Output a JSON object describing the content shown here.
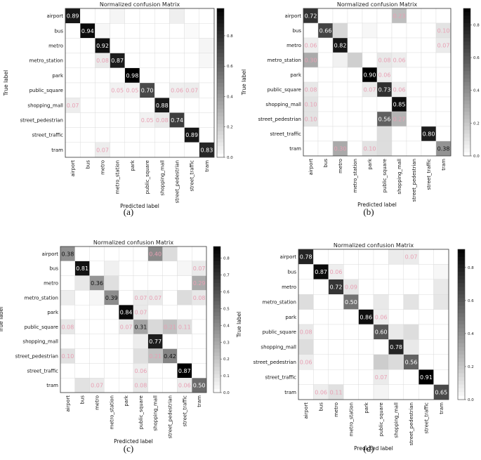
{
  "figure": {
    "subplot_labels": [
      "(a)",
      "(b)",
      "(c)",
      "(d)"
    ]
  },
  "chart_data": [
    {
      "type": "heatmap",
      "title": "Normalized confusion Matrix",
      "xlabel": "Predicted label",
      "ylabel": "True label",
      "categories": [
        "airport",
        "bus",
        "metro",
        "metro_station",
        "park",
        "public_square",
        "shopping_mall",
        "street_pedestrian",
        "street_traffic",
        "tram"
      ],
      "colorbar_ticks": [
        0.0,
        0.2,
        0.4,
        0.6,
        0.8
      ],
      "vmax": 0.98,
      "matrix": [
        [
          0.89,
          0.0,
          0.0,
          0.04,
          0.0,
          0.0,
          0.0,
          0.06,
          0.0,
          0.0
        ],
        [
          0.0,
          0.94,
          0.03,
          0.0,
          0.0,
          0.0,
          0.0,
          0.0,
          0.02,
          0.0
        ],
        [
          0.0,
          0.0,
          0.92,
          0.0,
          0.0,
          0.0,
          0.0,
          0.0,
          0.0,
          0.04
        ],
        [
          0.0,
          0.0,
          0.08,
          0.87,
          0.0,
          0.0,
          0.0,
          0.0,
          0.0,
          0.03
        ],
        [
          0.0,
          0.0,
          0.0,
          0.0,
          0.98,
          0.0,
          0.0,
          0.0,
          0.0,
          0.0
        ],
        [
          0.0,
          0.0,
          0.0,
          0.05,
          0.05,
          0.7,
          0.0,
          0.06,
          0.07,
          0.0
        ],
        [
          0.07,
          0.0,
          0.0,
          0.0,
          0.0,
          0.0,
          0.88,
          0.0,
          0.0,
          0.0
        ],
        [
          0.0,
          0.0,
          0.0,
          0.0,
          0.0,
          0.05,
          0.08,
          0.74,
          0.0,
          0.0
        ],
        [
          0.0,
          0.0,
          0.0,
          0.0,
          0.0,
          0.0,
          0.0,
          0.0,
          0.89,
          0.0
        ],
        [
          0.0,
          0.0,
          0.07,
          0.0,
          0.0,
          0.0,
          0.0,
          0.0,
          0.0,
          0.83
        ]
      ],
      "labels": [
        [
          "0.89",
          "",
          "",
          "",
          "",
          "",
          "",
          "",
          "",
          ""
        ],
        [
          "",
          "0.94",
          "",
          "",
          "",
          "",
          "",
          "",
          "",
          ""
        ],
        [
          "",
          "",
          "0.92",
          "",
          "",
          "",
          "",
          "",
          "",
          ""
        ],
        [
          "",
          "",
          "0.08",
          "0.87",
          "",
          "",
          "",
          "",
          "",
          ""
        ],
        [
          "",
          "",
          "",
          "",
          "0.98",
          "",
          "",
          "",
          "",
          ""
        ],
        [
          "",
          "",
          "",
          "0.05",
          "0.05",
          "0.70",
          "",
          "0.06",
          "0.07",
          ""
        ],
        [
          "0.07",
          "",
          "",
          "",
          "",
          "",
          "0.88",
          "",
          "",
          ""
        ],
        [
          "",
          "",
          "",
          "",
          "",
          "0.05",
          "0.08",
          "0.74",
          "",
          ""
        ],
        [
          "",
          "",
          "",
          "",
          "",
          "",
          "",
          "",
          "0.89",
          ""
        ],
        [
          "",
          "",
          "0.07",
          "",
          "",
          "",
          "",
          "",
          "",
          "0.83"
        ]
      ]
    },
    {
      "type": "heatmap",
      "title": "Normalized confusion Matrix",
      "xlabel": "Predicted label",
      "ylabel": "True label",
      "categories": [
        "airport",
        "bus",
        "metro",
        "metro_station",
        "park",
        "public_square",
        "shopping_mall",
        "street_pedestrian",
        "street_traffic",
        "tram"
      ],
      "colorbar_ticks": [
        0.0,
        0.2,
        0.4,
        0.6,
        0.8
      ],
      "vmax": 0.9,
      "matrix": [
        [
          0.72,
          0.0,
          0.0,
          0.0,
          0.0,
          0.0,
          0.23,
          0.0,
          0.0,
          0.0
        ],
        [
          0.0,
          0.66,
          0.14,
          0.0,
          0.03,
          0.0,
          0.0,
          0.0,
          0.0,
          0.1
        ],
        [
          0.06,
          0.0,
          0.82,
          0.0,
          0.0,
          0.0,
          0.0,
          0.0,
          0.0,
          0.07
        ],
        [
          0.3,
          0.0,
          0.05,
          0.17,
          0.0,
          0.08,
          0.06,
          0.0,
          0.0,
          0.0
        ],
        [
          0.0,
          0.0,
          0.0,
          0.0,
          0.9,
          0.06,
          0.0,
          0.0,
          0.0,
          0.0
        ],
        [
          0.08,
          0.0,
          0.0,
          0.0,
          0.07,
          0.73,
          0.06,
          0.0,
          0.0,
          0.0
        ],
        [
          0.1,
          0.0,
          0.0,
          0.0,
          0.0,
          0.0,
          0.85,
          0.0,
          0.0,
          0.0
        ],
        [
          0.1,
          0.0,
          0.0,
          0.0,
          0.0,
          0.56,
          0.27,
          0.0,
          0.0,
          0.0
        ],
        [
          0.0,
          0.0,
          0.0,
          0.0,
          0.0,
          0.12,
          0.0,
          0.0,
          0.8,
          0.0
        ],
        [
          0.0,
          0.0,
          0.3,
          0.0,
          0.1,
          0.12,
          0.0,
          0.0,
          0.0,
          0.38
        ]
      ],
      "labels": [
        [
          "0.72",
          "",
          "",
          "",
          "",
          "",
          "0.23",
          "",
          "",
          ""
        ],
        [
          "",
          "0.66",
          "",
          "",
          "",
          "",
          "",
          "",
          "",
          "0.10"
        ],
        [
          "0.06",
          "",
          "0.82",
          "",
          "",
          "",
          "",
          "",
          "",
          "0.07"
        ],
        [
          "0.30",
          "",
          "",
          "",
          "",
          "0.08",
          "0.06",
          "",
          "",
          ""
        ],
        [
          "",
          "",
          "",
          "",
          "0.90",
          "0.06",
          "",
          "",
          "",
          ""
        ],
        [
          "0.08",
          "",
          "",
          "",
          "0.07",
          "0.73",
          "0.06",
          "",
          "",
          ""
        ],
        [
          "0.10",
          "",
          "",
          "",
          "",
          "",
          "0.85",
          "",
          "",
          ""
        ],
        [
          "0.10",
          "",
          "",
          "",
          "",
          "0.56",
          "0.27",
          "",
          "",
          ""
        ],
        [
          "",
          "",
          "",
          "",
          "",
          "",
          "",
          "",
          "0.80",
          ""
        ],
        [
          "",
          "",
          "0.30",
          "",
          "0.10",
          "",
          "",
          "",
          "",
          "0.38"
        ]
      ]
    },
    {
      "type": "heatmap",
      "title": "Normalized confusion Matrix",
      "xlabel": "Predicted label",
      "ylabel": "True label",
      "categories": [
        "airport",
        "bus",
        "metro",
        "metro_station",
        "park",
        "public_square",
        "shopping_mall",
        "street_pedestrian",
        "street_traffic",
        "tram"
      ],
      "colorbar_ticks": [
        0.0,
        0.1,
        0.2,
        0.3,
        0.4,
        0.5,
        0.6,
        0.7,
        0.8
      ],
      "vmax": 0.87,
      "matrix": [
        [
          0.38,
          0.0,
          0.0,
          0.0,
          0.0,
          0.0,
          0.4,
          0.12,
          0.0,
          0.0
        ],
        [
          0.0,
          0.81,
          0.0,
          0.05,
          0.0,
          0.0,
          0.0,
          0.0,
          0.03,
          0.07
        ],
        [
          0.0,
          0.08,
          0.36,
          0.11,
          0.0,
          0.0,
          0.0,
          0.0,
          0.0,
          0.29
        ],
        [
          0.06,
          0.0,
          0.03,
          0.39,
          0.0,
          0.07,
          0.07,
          0.0,
          0.12,
          0.08
        ],
        [
          0.0,
          0.0,
          0.0,
          0.0,
          0.84,
          0.07,
          0.0,
          0.0,
          0.0,
          0.0
        ],
        [
          0.08,
          0.0,
          0.0,
          0.0,
          0.07,
          0.31,
          0.13,
          0.21,
          0.11,
          0.0
        ],
        [
          0.0,
          0.0,
          0.0,
          0.0,
          0.0,
          0.06,
          0.77,
          0.0,
          0.0,
          0.0
        ],
        [
          0.1,
          0.0,
          0.0,
          0.0,
          0.0,
          0.11,
          0.21,
          0.42,
          0.0,
          0.0
        ],
        [
          0.0,
          0.0,
          0.0,
          0.0,
          0.0,
          0.06,
          0.0,
          0.0,
          0.87,
          0.0
        ],
        [
          0.0,
          0.1,
          0.07,
          0.0,
          0.0,
          0.08,
          0.0,
          0.0,
          0.06,
          0.5
        ]
      ],
      "labels": [
        [
          "0.38",
          "",
          "",
          "",
          "",
          "",
          "0.40",
          "",
          "",
          ""
        ],
        [
          "",
          "0.81",
          "",
          "",
          "",
          "",
          "",
          "",
          "",
          "0.07"
        ],
        [
          "",
          "",
          "0.36",
          "",
          "",
          "",
          "",
          "",
          "",
          "0.29"
        ],
        [
          "",
          "",
          "",
          "0.39",
          "",
          "0.07",
          "0.07",
          "",
          "",
          "0.08"
        ],
        [
          "",
          "",
          "",
          "",
          "0.84",
          "0.07",
          "",
          "",
          "",
          ""
        ],
        [
          "0.08",
          "",
          "",
          "",
          "0.07",
          "0.31",
          "",
          "0.21",
          "0.11",
          ""
        ],
        [
          "",
          "",
          "",
          "",
          "",
          "",
          "0.77",
          "",
          "",
          ""
        ],
        [
          "0.10",
          "",
          "",
          "",
          "",
          "",
          "0.21",
          "0.42",
          "",
          ""
        ],
        [
          "",
          "",
          "",
          "",
          "",
          "0.06",
          "",
          "",
          "0.87",
          ""
        ],
        [
          "",
          "",
          "0.07",
          "",
          "",
          "0.08",
          "",
          "",
          "0.06",
          "0.50"
        ]
      ]
    },
    {
      "type": "heatmap",
      "title": "Normalized confusion Matrix",
      "xlabel": "Predicted label",
      "ylabel": "True label",
      "categories": [
        "airport",
        "bus",
        "metro",
        "metro_station",
        "park",
        "public_square",
        "shopping_mall",
        "street_pedestrian",
        "street_traffic",
        "tram"
      ],
      "colorbar_ticks": [
        0.0,
        0.2,
        0.4,
        0.6,
        0.8
      ],
      "vmax": 0.91,
      "matrix": [
        [
          0.78,
          0.0,
          0.0,
          0.0,
          0.0,
          0.0,
          0.07,
          0.07,
          0.0,
          0.0
        ],
        [
          0.0,
          0.87,
          0.06,
          0.0,
          0.0,
          0.0,
          0.0,
          0.0,
          0.0,
          0.03
        ],
        [
          0.0,
          0.0,
          0.72,
          0.09,
          0.0,
          0.0,
          0.0,
          0.0,
          0.0,
          0.08
        ],
        [
          0.12,
          0.0,
          0.0,
          0.5,
          0.0,
          0.08,
          0.0,
          0.1,
          0.0,
          0.09
        ],
        [
          0.0,
          0.0,
          0.0,
          0.0,
          0.86,
          0.06,
          0.0,
          0.0,
          0.0,
          0.0
        ],
        [
          0.08,
          0.0,
          0.0,
          0.0,
          0.0,
          0.6,
          0.08,
          0.12,
          0.0,
          0.0
        ],
        [
          0.12,
          0.0,
          0.0,
          0.0,
          0.0,
          0.0,
          0.78,
          0.08,
          0.0,
          0.0
        ],
        [
          0.06,
          0.0,
          0.0,
          0.0,
          0.0,
          0.18,
          0.13,
          0.56,
          0.0,
          0.0
        ],
        [
          0.0,
          0.0,
          0.0,
          0.0,
          0.0,
          0.07,
          0.0,
          0.0,
          0.91,
          0.0
        ],
        [
          0.0,
          0.06,
          0.11,
          0.0,
          0.0,
          0.04,
          0.0,
          0.0,
          0.0,
          0.65
        ]
      ],
      "labels": [
        [
          "0.78",
          "",
          "",
          "",
          "",
          "",
          "",
          "0.07",
          "",
          ""
        ],
        [
          "",
          "0.87",
          "0.06",
          "",
          "",
          "",
          "",
          "",
          "",
          ""
        ],
        [
          "",
          "",
          "0.72",
          "0.09",
          "",
          "",
          "",
          "",
          "",
          ""
        ],
        [
          "",
          "",
          "",
          "0.50",
          "",
          "",
          "",
          "",
          "",
          ""
        ],
        [
          "",
          "",
          "",
          "",
          "0.86",
          "0.06",
          "",
          "",
          "",
          ""
        ],
        [
          "0.08",
          "",
          "",
          "",
          "",
          "0.60",
          "",
          "",
          "",
          ""
        ],
        [
          "",
          "",
          "",
          "",
          "",
          "",
          "0.78",
          "",
          "",
          ""
        ],
        [
          "0.06",
          "",
          "",
          "",
          "",
          "",
          "",
          "0.56",
          "",
          ""
        ],
        [
          "",
          "",
          "",
          "",
          "",
          "0.07",
          "",
          "",
          "0.91",
          ""
        ],
        [
          "",
          "0.06",
          "0.11",
          "",
          "",
          "",
          "",
          "",
          "",
          "0.65"
        ]
      ]
    }
  ]
}
